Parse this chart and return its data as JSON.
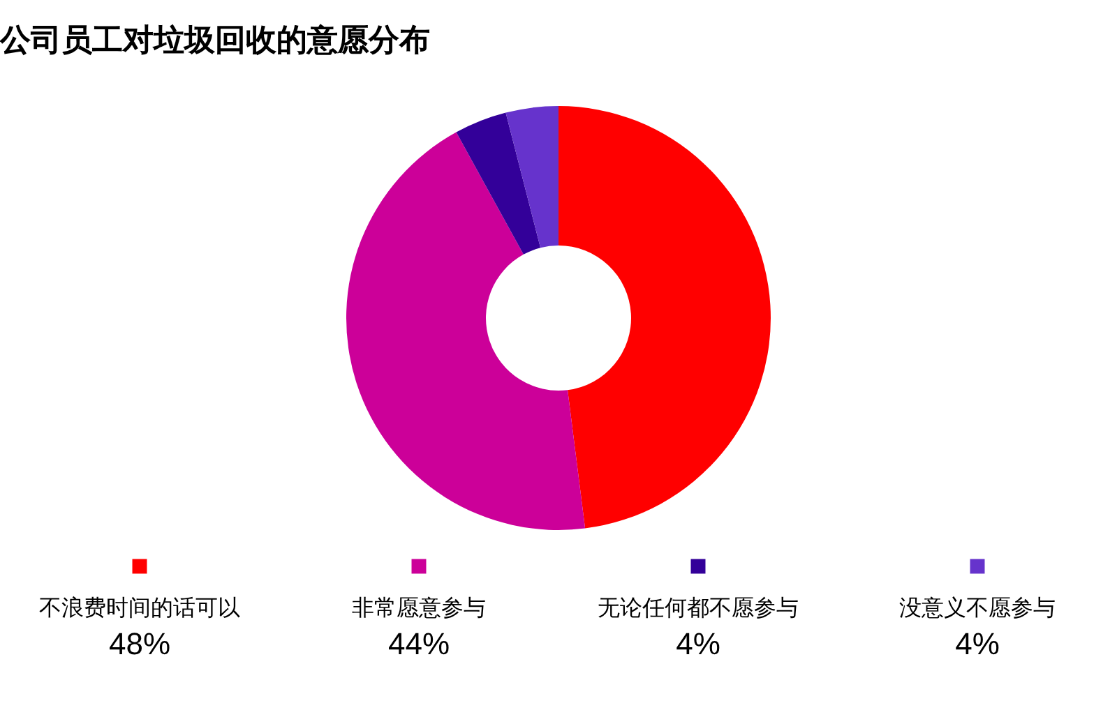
{
  "chart_data": {
    "type": "donut",
    "title": "公司员工对垃圾回收的意愿分布",
    "categories": [
      "不浪费时间的话可以",
      "非常愿意参与",
      "无论任何都不愿参与",
      "没意义不愿参与"
    ],
    "values": [
      48,
      44,
      4,
      4
    ],
    "colors": [
      "#ff0000",
      "#cc0099",
      "#330099",
      "#6633cc"
    ],
    "value_labels": [
      "48%",
      "44%",
      "4%",
      "4%"
    ],
    "legend": "bottom"
  }
}
